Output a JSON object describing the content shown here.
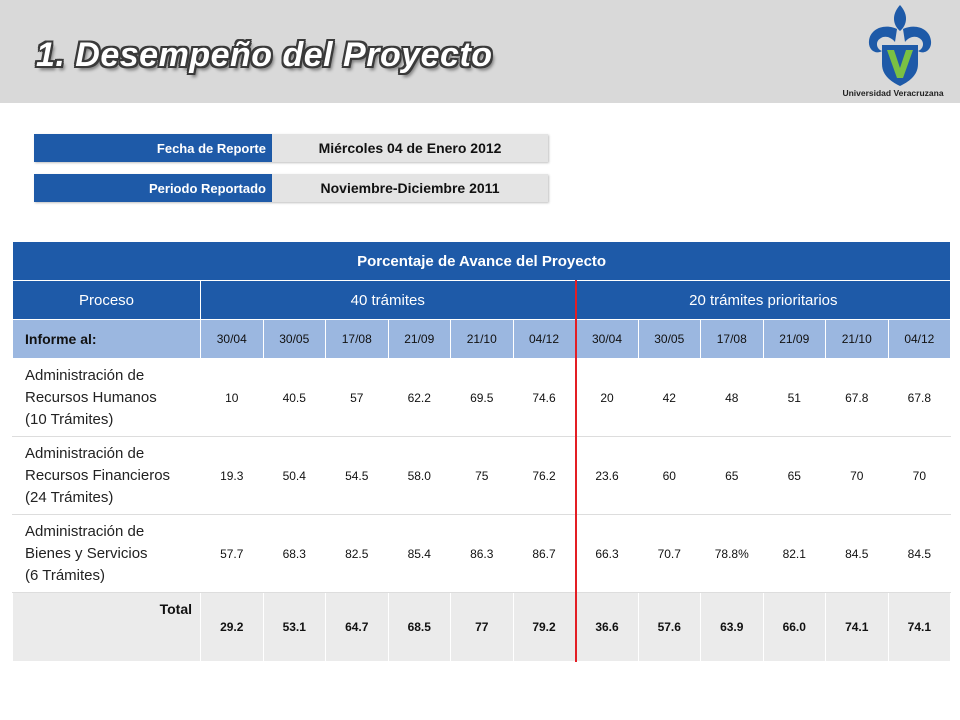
{
  "page_title": "1. Desempeño del Proyecto",
  "logo_caption": "Universidad Veracruzana",
  "report_info": {
    "date_label": "Fecha de Reporte",
    "date_value": "Miércoles 04 de Enero 2012",
    "period_label": "Periodo Reportado",
    "period_value": "Noviembre-Diciembre 2011"
  },
  "table": {
    "title": "Porcentaje de Avance del Proyecto",
    "col_proceso": "Proceso",
    "group1": "40 trámites",
    "group2": "20 trámites prioritarios",
    "informe_label": "Informe al:",
    "dates": [
      "30/04",
      "30/05",
      "17/08",
      "21/09",
      "21/10",
      "04/12",
      "30/04",
      "30/05",
      "17/08",
      "21/09",
      "21/10",
      "04/12"
    ],
    "rows": [
      {
        "process_lines": [
          "Administración de",
          "Recursos Humanos",
          "(10 Trámites)"
        ],
        "values": [
          "10",
          "40.5",
          "57",
          "62.2",
          "69.5",
          "74.6",
          "20",
          "42",
          "48",
          "51",
          "67.8",
          "67.8"
        ]
      },
      {
        "process_lines": [
          "Administración de",
          "Recursos Financieros",
          "(24 Trámites)"
        ],
        "values": [
          "19.3",
          "50.4",
          "54.5",
          "58.0",
          "75",
          "76.2",
          "23.6",
          "60",
          "65",
          "65",
          "70",
          "70"
        ]
      },
      {
        "process_lines": [
          "Administración de",
          "Bienes y Servicios",
          "(6 Trámites)"
        ],
        "values": [
          "57.7",
          "68.3",
          "82.5",
          "85.4",
          "86.3",
          "86.7",
          "66.3",
          "70.7",
          "78.8%",
          "82.1",
          "84.5",
          "84.5"
        ]
      }
    ],
    "total_label": "Total",
    "total_values": [
      "29.2",
      "53.1",
      "64.7",
      "68.5",
      "77",
      "79.2",
      "36.6",
      "57.6",
      "63.9",
      "66.0",
      "74.1",
      "74.1"
    ]
  },
  "colors": {
    "primary_blue": "#1e5aa8",
    "light_blue": "#9bb7e0",
    "header_gray": "#d9d9d9",
    "divider_red": "#e31e24",
    "logo_green": "#7ac143"
  }
}
